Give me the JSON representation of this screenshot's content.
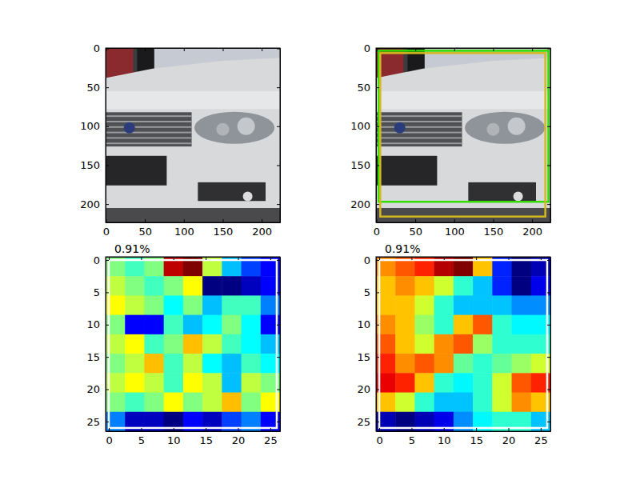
{
  "chart_data": [
    {
      "type": "image",
      "xlim": [
        -0.5,
        223.5
      ],
      "ylim": [
        223.5,
        -0.5
      ],
      "xticks": [
        0,
        50,
        100,
        150,
        200
      ],
      "yticks": [
        0,
        50,
        100,
        150,
        200
      ]
    },
    {
      "type": "image",
      "xlim": [
        -0.5,
        223.5
      ],
      "ylim": [
        223.5,
        -0.5
      ],
      "xticks": [
        0,
        50,
        100,
        150,
        200
      ],
      "yticks": [
        0,
        50,
        100,
        150,
        200
      ],
      "boxes": [
        {
          "x0": 3,
          "y0": 3,
          "x1": 221,
          "y1": 197,
          "color": "#33dd00"
        },
        {
          "x0": 5,
          "y0": 6,
          "x1": 217,
          "y1": 216,
          "color": "#d4b820"
        }
      ]
    },
    {
      "type": "heatmap",
      "title": "0.91%",
      "xlim": [
        -0.5,
        26.5
      ],
      "ylim": [
        26.5,
        -0.5
      ],
      "xticks": [
        0,
        5,
        10,
        15,
        20,
        25
      ],
      "yticks": [
        0,
        5,
        10,
        15,
        20,
        25
      ],
      "cells": [
        [
          0.5,
          0.45,
          0.5,
          0.85,
          0.9,
          0.55,
          0.35,
          0.25,
          0.2
        ],
        [
          0.55,
          0.5,
          0.45,
          0.5,
          0.6,
          0.1,
          0.1,
          0.15,
          0.2
        ],
        [
          0.6,
          0.55,
          0.5,
          0.4,
          0.5,
          0.35,
          0.45,
          0.45,
          0.3
        ],
        [
          0.5,
          0.2,
          0.2,
          0.45,
          0.35,
          0.4,
          0.5,
          0.4,
          0.2
        ],
        [
          0.55,
          0.6,
          0.45,
          0.5,
          0.65,
          0.55,
          0.45,
          0.4,
          0.35
        ],
        [
          0.5,
          0.55,
          0.65,
          0.45,
          0.55,
          0.4,
          0.35,
          0.45,
          0.4
        ],
        [
          0.55,
          0.6,
          0.55,
          0.45,
          0.6,
          0.55,
          0.35,
          0.55,
          0.5
        ],
        [
          0.5,
          0.45,
          0.5,
          0.6,
          0.5,
          0.55,
          0.65,
          0.5,
          0.6
        ],
        [
          0.3,
          0.15,
          0.15,
          0.1,
          0.2,
          0.15,
          0.25,
          0.3,
          0.2
        ]
      ],
      "boxes": [
        {
          "x0": 0,
          "y0": 0,
          "x1": 26,
          "y1": 26,
          "color": "#ffffff"
        }
      ]
    },
    {
      "type": "heatmap",
      "title": "0.91%",
      "xlim": [
        -0.5,
        26.5
      ],
      "ylim": [
        26.5,
        -0.5
      ],
      "xticks": [
        0,
        5,
        10,
        15,
        20,
        25
      ],
      "yticks": [
        0,
        5,
        10,
        15,
        20,
        25
      ],
      "cells": [
        [
          0.75,
          0.8,
          0.85,
          0.95,
          1.0,
          0.7,
          0.2,
          0.05,
          0.1
        ],
        [
          0.7,
          0.75,
          0.7,
          0.6,
          0.45,
          0.35,
          0.2,
          0.05,
          0.15
        ],
        [
          0.7,
          0.7,
          0.6,
          0.45,
          0.35,
          0.35,
          0.35,
          0.3,
          0.3
        ],
        [
          0.75,
          0.7,
          0.55,
          0.45,
          0.7,
          0.8,
          0.45,
          0.4,
          0.4
        ],
        [
          0.8,
          0.7,
          0.6,
          0.75,
          0.8,
          0.55,
          0.45,
          0.45,
          0.45
        ],
        [
          0.85,
          0.75,
          0.8,
          0.75,
          0.5,
          0.45,
          0.5,
          0.55,
          0.6
        ],
        [
          0.9,
          0.85,
          0.7,
          0.45,
          0.4,
          0.45,
          0.6,
          0.8,
          0.85
        ],
        [
          0.7,
          0.6,
          0.45,
          0.35,
          0.35,
          0.45,
          0.6,
          0.75,
          0.7
        ],
        [
          0.1,
          0.05,
          0.1,
          0.15,
          0.3,
          0.4,
          0.45,
          0.45,
          0.35
        ]
      ],
      "boxes": [
        {
          "x0": 0,
          "y0": 0,
          "x1": 26,
          "y1": 26,
          "color": "#ffffff"
        }
      ]
    }
  ]
}
